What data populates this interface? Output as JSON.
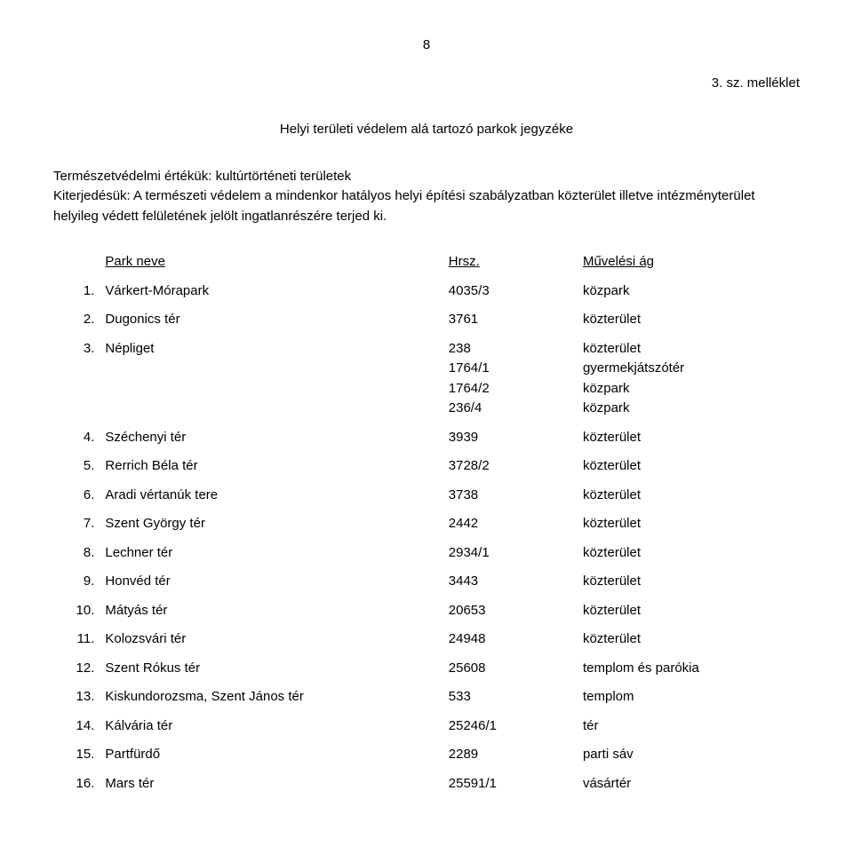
{
  "page_number": "8",
  "appendix_label": "3. sz. melléklet",
  "main_title": "Helyi területi védelem alá tartozó parkok jegyzéke",
  "intro_paragraph": "Természetvédelmi értékük: kultúrtörténeti területek\nKiterjedésük: A természeti védelem a mindenkor hatályos helyi építési szabályzatban közterület illetve intézményterület helyileg védett felületének jelölt ingatlanrészére terjed ki.",
  "columns": {
    "blank": "",
    "name": "Park neve",
    "hrsz": "Hrsz.",
    "mag": "Művelési ág"
  },
  "rows": [
    {
      "num": "1.",
      "name": "Várkert-Mórapark",
      "hrsz": "4035/3",
      "mag": "közpark"
    },
    {
      "num": "2.",
      "name": "Dugonics tér",
      "hrsz": "3761",
      "mag": "közterület"
    },
    {
      "num": "3.",
      "name": "Népliget",
      "hrsz": "238\n1764/1\n1764/2\n236/4",
      "mag": "közterület\ngyermekjátszótér\nközpark\nközpark"
    },
    {
      "num": "4.",
      "name": "Széchenyi tér",
      "hrsz": "3939",
      "mag": "közterület"
    },
    {
      "num": "5.",
      "name": "Rerrich Béla tér",
      "hrsz": "3728/2",
      "mag": "közterület"
    },
    {
      "num": "6.",
      "name": "Aradi vértanúk tere",
      "hrsz": "3738",
      "mag": "közterület"
    },
    {
      "num": "7.",
      "name": "Szent György tér",
      "hrsz": "2442",
      "mag": "közterület"
    },
    {
      "num": "8.",
      "name": "Lechner tér",
      "hrsz": "2934/1",
      "mag": "közterület"
    },
    {
      "num": "9.",
      "name": "Honvéd tér",
      "hrsz": "3443",
      "mag": "közterület"
    },
    {
      "num": "10.",
      "name": "Mátyás tér",
      "hrsz": "20653",
      "mag": "közterület"
    },
    {
      "num": "11.",
      "name": "Kolozsvári tér",
      "hrsz": "24948",
      "mag": "közterület"
    },
    {
      "num": "12.",
      "name": "Szent Rókus tér",
      "hrsz": "25608",
      "mag": "templom és parókia"
    },
    {
      "num": "13.",
      "name": "Kiskundorozsma, Szent János tér",
      "hrsz": "533",
      "mag": "templom"
    },
    {
      "num": "14.",
      "name": "Kálvária tér",
      "hrsz": "25246/1",
      "mag": "tér"
    },
    {
      "num": "15.",
      "name": "Partfürdő",
      "hrsz": "2289",
      "mag": "parti sáv"
    },
    {
      "num": "16.",
      "name": "Mars tér",
      "hrsz": "25591/1",
      "mag": "vásártér"
    }
  ]
}
